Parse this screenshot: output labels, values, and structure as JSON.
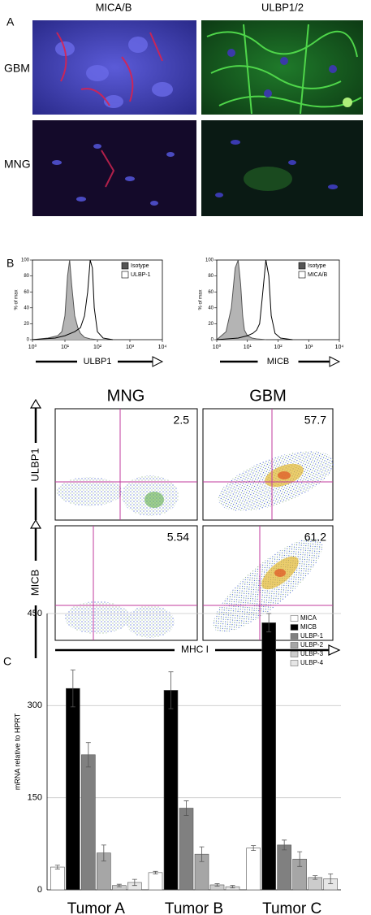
{
  "panel_a": {
    "label": "A",
    "columns": [
      "MICA/B",
      "ULBP1/2"
    ],
    "rows": [
      "GBM",
      "MNG"
    ]
  },
  "panel_b": {
    "label": "B",
    "flow": {
      "columns": [
        "MNG",
        "GBM"
      ],
      "rows": [
        {
          "label": "ULBP1",
          "values": [
            2.5,
            57.7
          ]
        },
        {
          "label": "MICB",
          "values": [
            5.54,
            61.2
          ]
        }
      ],
      "x_label": "MHC I"
    }
  },
  "panel_c": {
    "label": "C"
  },
  "chart_data": [
    {
      "type": "line",
      "x_label": "ULBP1",
      "y_label": "% of max",
      "log_x": true,
      "xlim": [
        1,
        10000
      ],
      "xticks": [
        {
          "value": 1,
          "label": "10⁰"
        },
        {
          "value": 10,
          "label": "10¹"
        },
        {
          "value": 100,
          "label": "10²"
        },
        {
          "value": 1000,
          "label": "10³"
        },
        {
          "value": 10000,
          "label": "10⁴"
        }
      ],
      "ylim": [
        0,
        100
      ],
      "yticks": [
        0,
        20,
        40,
        60,
        80,
        100
      ],
      "legend": "top-right",
      "series": [
        {
          "name": "Isotype",
          "color": "#555555",
          "fill": "#b4b4b4",
          "x": [
            1,
            3,
            6,
            8,
            10,
            12,
            14,
            16,
            20,
            25,
            30,
            40,
            60,
            100
          ],
          "values": [
            0,
            2,
            5,
            10,
            30,
            80,
            100,
            70,
            30,
            15,
            8,
            3,
            1,
            0
          ]
        },
        {
          "name": "ULBP-1",
          "color": "#000000",
          "fill": "none",
          "x": [
            1,
            5,
            10,
            20,
            30,
            40,
            50,
            60,
            70,
            80,
            100,
            150,
            300
          ],
          "values": [
            0,
            2,
            5,
            10,
            15,
            30,
            60,
            100,
            90,
            40,
            10,
            2,
            0
          ]
        }
      ]
    },
    {
      "type": "line",
      "x_label": "MICB",
      "y_label": "% of max",
      "log_x": true,
      "xlim": [
        1,
        10000
      ],
      "xticks": [
        {
          "value": 1,
          "label": "10⁰"
        },
        {
          "value": 10,
          "label": "10¹"
        },
        {
          "value": 100,
          "label": "10²"
        },
        {
          "value": 1000,
          "label": "10³"
        },
        {
          "value": 10000,
          "label": "10⁴"
        }
      ],
      "ylim": [
        0,
        100
      ],
      "yticks": [
        0,
        20,
        40,
        60,
        80,
        100
      ],
      "legend": "top-right",
      "series": [
        {
          "name": "Isotype",
          "color": "#555555",
          "fill": "#b4b4b4",
          "x": [
            1,
            2,
            3,
            4,
            5,
            6,
            7,
            8,
            10,
            14,
            20,
            40
          ],
          "values": [
            0,
            10,
            40,
            90,
            100,
            70,
            30,
            12,
            5,
            2,
            1,
            0
          ]
        },
        {
          "name": "MICA/B",
          "color": "#000000",
          "fill": "none",
          "x": [
            1,
            5,
            10,
            15,
            20,
            25,
            30,
            40,
            50,
            60,
            80,
            120,
            300
          ],
          "values": [
            0,
            2,
            5,
            8,
            12,
            20,
            50,
            100,
            80,
            30,
            8,
            2,
            0
          ]
        }
      ]
    },
    {
      "type": "bar",
      "y_label": "mRNA relative to HPRT",
      "categories": [
        "Tumor A",
        "Tumor B",
        "Tumor C"
      ],
      "ylim": [
        0,
        450
      ],
      "yticks": [
        0,
        150,
        300,
        450
      ],
      "grid": true,
      "legend": "top-right",
      "series": [
        {
          "name": "MICA",
          "color": "#ffffff",
          "values": [
            37,
            28,
            68
          ],
          "errors": [
            3,
            2,
            4
          ]
        },
        {
          "name": "MICB",
          "color": "#000000",
          "values": [
            328,
            325,
            435
          ],
          "errors": [
            30,
            30,
            15
          ]
        },
        {
          "name": "ULBP-1",
          "color": "#808080",
          "values": [
            220,
            133,
            73
          ],
          "errors": [
            20,
            12,
            8
          ]
        },
        {
          "name": "ULBP-2",
          "color": "#a6a6a6",
          "values": [
            60,
            58,
            50
          ],
          "errors": [
            13,
            12,
            12
          ]
        },
        {
          "name": "ULBP-3",
          "color": "#cccccc",
          "values": [
            7,
            8,
            20
          ],
          "errors": [
            2,
            2,
            3
          ]
        },
        {
          "name": "ULBP-4",
          "color": "#e6e6e6",
          "values": [
            12,
            5,
            18
          ],
          "errors": [
            5,
            2,
            8
          ]
        }
      ]
    }
  ]
}
